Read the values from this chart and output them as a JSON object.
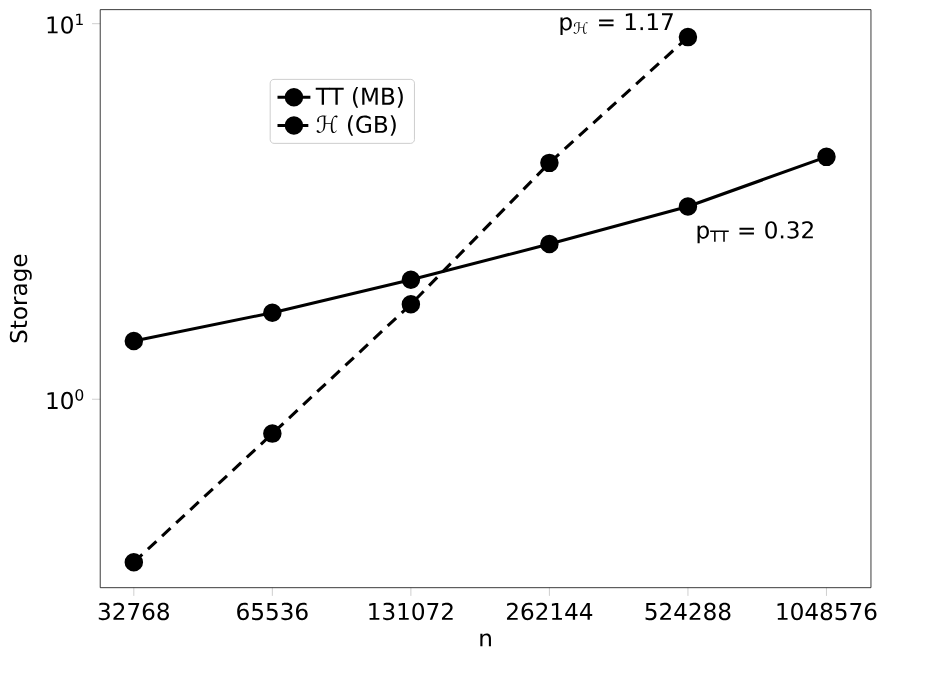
{
  "chart_data": {
    "type": "line",
    "xlabel": "n",
    "ylabel": "Storage",
    "log": "xy",
    "marker": "circle",
    "legend": "top left",
    "x": [
      32768,
      65536,
      131072,
      262144,
      524288,
      1048576
    ],
    "series": [
      {
        "name": "TT (MB)",
        "color": "#000000",
        "line_style": "solid",
        "values": [
          1.43,
          1.7,
          2.08,
          2.59,
          3.26,
          4.42
        ]
      },
      {
        "name": "ℋ (GB)",
        "color": "#000000",
        "line_style": "dashed",
        "x": [
          32768,
          65536,
          131072,
          262144,
          524288
        ],
        "values": [
          0.368,
          0.81,
          1.79,
          4.26,
          9.21
        ]
      }
    ],
    "xlim": [
      27700,
      1310000
    ],
    "ylim": [
      0.315,
      10.9
    ],
    "xticks": [
      32768,
      65536,
      131072,
      262144,
      524288,
      1048576
    ],
    "yticks": [
      {
        "value": 1,
        "label": "10$^{0}$"
      },
      {
        "value": 10,
        "label": "10$^{1}$"
      }
    ],
    "annotations": [
      "p$_{ℋ}$ = 1.17",
      "p$_{TT}$ = 0.32"
    ]
  }
}
